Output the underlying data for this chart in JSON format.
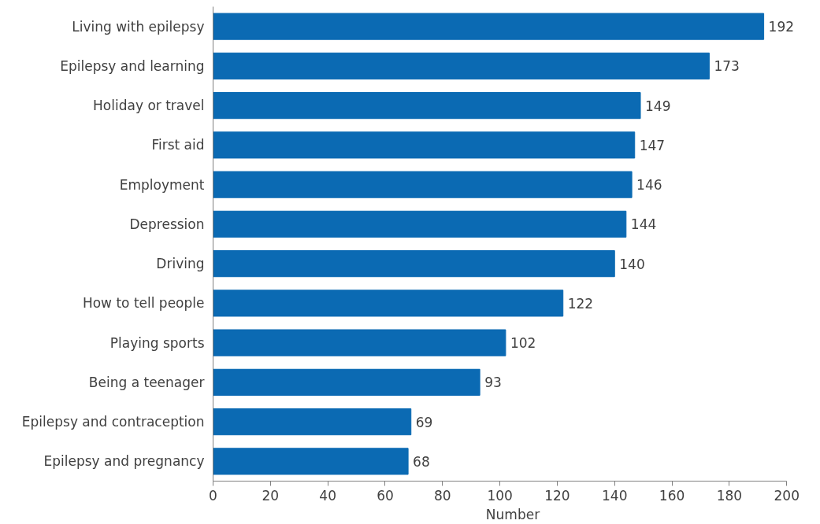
{
  "chart_data": {
    "type": "bar",
    "orientation": "horizontal",
    "xlabel": "Number",
    "categories": [
      "Living with epilepsy",
      "Epilepsy and learning",
      "Holiday or travel",
      "First aid",
      "Employment",
      "Depression",
      "Driving",
      "How to tell people",
      "Playing sports",
      "Being a teenager",
      "Epilepsy and contraception",
      "Epilepsy and pregnancy"
    ],
    "values": [
      192,
      173,
      149,
      147,
      146,
      144,
      140,
      122,
      102,
      93,
      69,
      68
    ],
    "color": "#0b6ab3",
    "xlim": [
      0,
      200
    ],
    "xticks": [
      0,
      20,
      40,
      60,
      80,
      100,
      120,
      140,
      160,
      180,
      200
    ],
    "data_labels": true,
    "grid": false
  }
}
